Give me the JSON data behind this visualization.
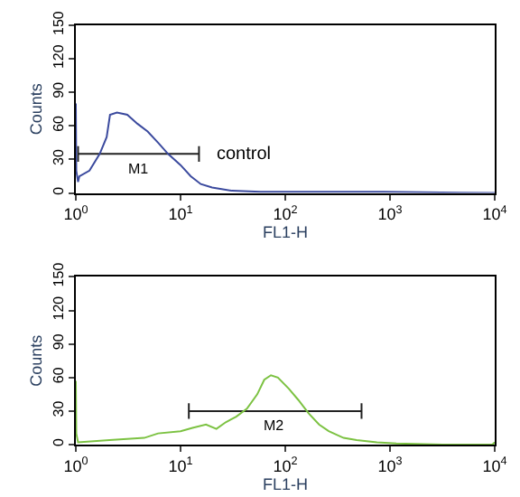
{
  "chart_data": [
    {
      "type": "line",
      "xlabel": "FL1-H",
      "ylabel": "Counts",
      "xlim": [
        1,
        10000
      ],
      "ylim": [
        0,
        150
      ],
      "log": "x",
      "xticks": [
        {
          "value": 1,
          "label": "10$^{0}$"
        },
        {
          "value": 10,
          "label": "10$^{1}$"
        },
        {
          "value": 100,
          "label": "10$^{2}$"
        },
        {
          "value": 1000,
          "label": "10$^{3}$"
        },
        {
          "value": 10000,
          "label": "10$^{4}$"
        }
      ],
      "yticks": [
        0,
        30,
        60,
        90,
        120,
        150
      ],
      "marker": "none",
      "line_style": "solid",
      "x": [
        1,
        1.01,
        1.05,
        1.08,
        1.35,
        1.69,
        1.97,
        2.12,
        2.47,
        3.1,
        3.87,
        4.85,
        6.1,
        7.6,
        10,
        12.5,
        15.6,
        20,
        31,
        58,
        100,
        190,
        870,
        10000
      ],
      "series": [
        {
          "type": "line",
          "color": "#222222",
          "x": [
            1.05,
            15
          ],
          "values": [
            35,
            35
          ],
          "errors": [
            7,
            7
          ]
        },
        {
          "color": "#3b4a9e",
          "values": [
            80,
            20,
            10,
            15,
            20,
            35,
            50,
            70,
            72,
            70,
            62,
            55,
            45,
            35,
            25,
            15,
            8,
            5,
            2,
            1,
            1,
            1,
            1,
            0
          ]
        }
      ],
      "annotations": [
        "M1",
        "control"
      ]
    },
    {
      "type": "line",
      "xlabel": "FL1-H",
      "ylabel": "Counts",
      "xlim": [
        1,
        10000
      ],
      "ylim": [
        0,
        150
      ],
      "log": "x",
      "xticks": [
        {
          "value": 1,
          "label": "10$^{0}$"
        },
        {
          "value": 10,
          "label": "10$^{1}$"
        },
        {
          "value": 100,
          "label": "10$^{2}$"
        },
        {
          "value": 1000,
          "label": "10$^{3}$"
        },
        {
          "value": 10000,
          "label": "10$^{4}$"
        }
      ],
      "yticks": [
        0,
        30,
        60,
        90,
        120,
        150
      ],
      "marker": "none",
      "line_style": "solid",
      "x": [
        1,
        1.01,
        1.05,
        2.1,
        4.5,
        6.1,
        10,
        13,
        17.5,
        22,
        27,
        34,
        43,
        54,
        63,
        73,
        85,
        108,
        133,
        167,
        210,
        260,
        360,
        480,
        750,
        1150,
        3200,
        9500,
        10000
      ],
      "series": [
        {
          "type": "line",
          "color": "#222222",
          "x": [
            12,
            535
          ],
          "values": [
            30,
            30
          ],
          "errors": [
            7,
            7
          ]
        },
        {
          "color": "#7cc242",
          "values": [
            57,
            10,
            2,
            4,
            6,
            10,
            12,
            15,
            18,
            14,
            20,
            25,
            32,
            45,
            58,
            62,
            60,
            50,
            40,
            28,
            18,
            12,
            6,
            4,
            2,
            1,
            0,
            0,
            2
          ]
        }
      ],
      "annotations": [
        "M2"
      ]
    }
  ]
}
